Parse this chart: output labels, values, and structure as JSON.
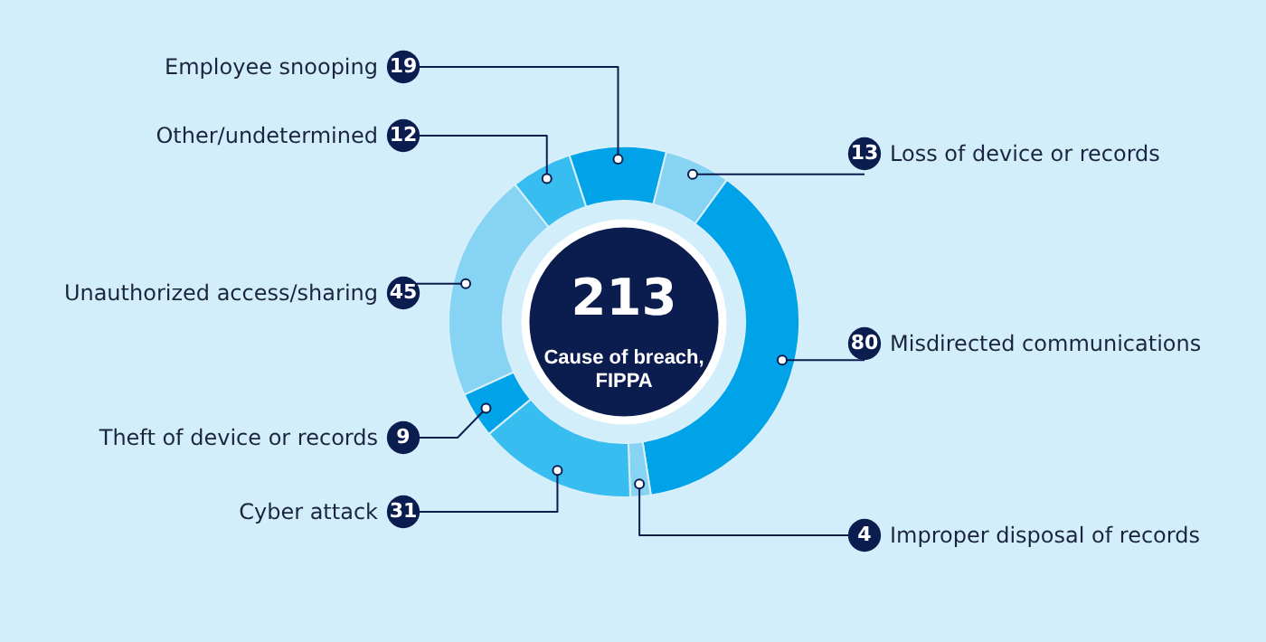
{
  "chart_data": {
    "type": "donut",
    "title": "Cause of breach, FIPPA",
    "annotations": [
      "213"
    ],
    "categories": [
      "Loss of device or records",
      "Misdirected communications",
      "Improper disposal of records",
      "Cyber attack",
      "Theft of device or records",
      "Unauthorized access/sharing",
      "Other/undetermined",
      "Employee snooping"
    ],
    "values": [
      13,
      80,
      4,
      31,
      9,
      45,
      12,
      19
    ],
    "colors": [
      "#86d3f3",
      "#00a3e8",
      "#86d3f3",
      "#38bdf0",
      "#00a3e8",
      "#86d3f3",
      "#38bdf0",
      "#00a3e8"
    ],
    "data_labels": true
  }
}
